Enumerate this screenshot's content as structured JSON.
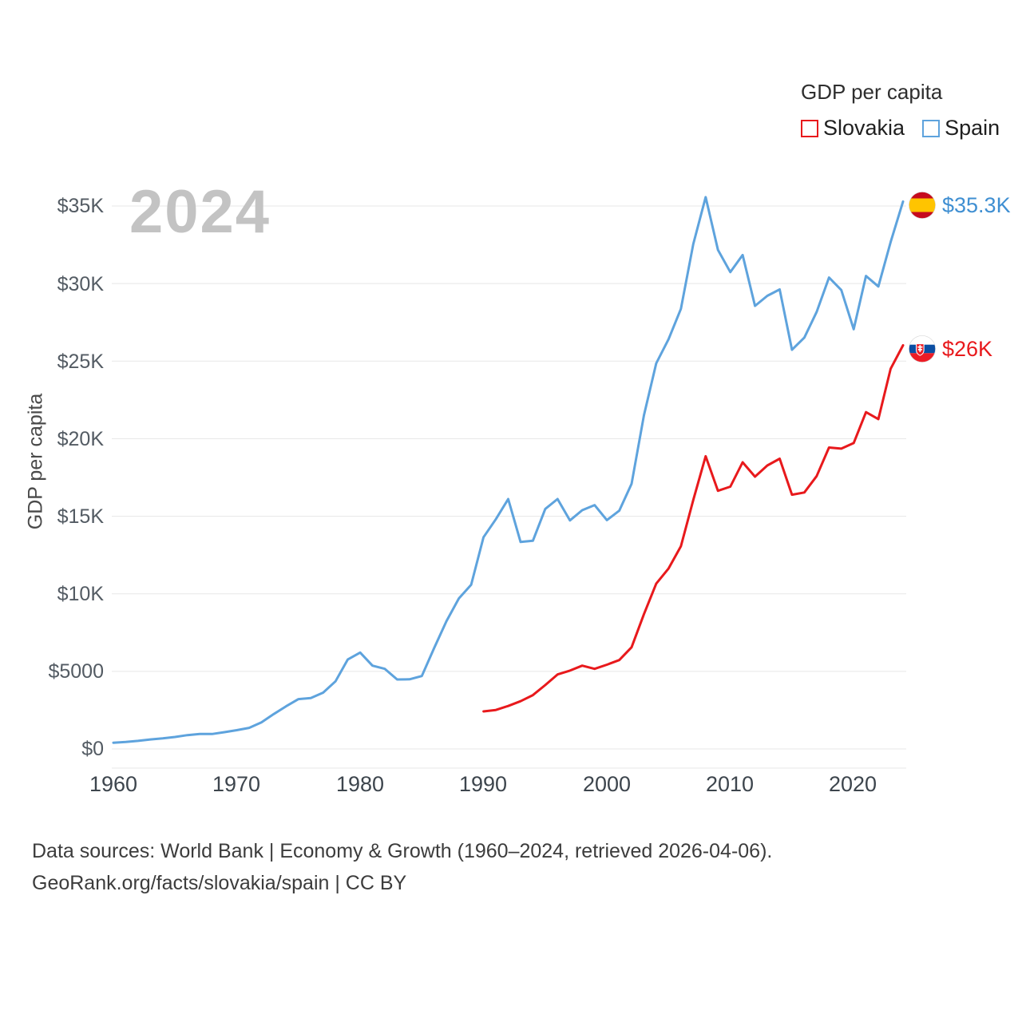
{
  "legend": {
    "title": "GDP per capita",
    "items": [
      {
        "label": "Slovakia",
        "color": "#e8191c"
      },
      {
        "label": "Spain",
        "color": "#5ea3dd"
      }
    ]
  },
  "watermark": "2024",
  "axis": {
    "y_title": "GDP per capita",
    "y_ticks": [
      "$35K",
      "$30K",
      "$25K",
      "$20K",
      "$15K",
      "$10K",
      "$5000",
      "$0"
    ],
    "x_ticks": [
      "1960",
      "1970",
      "1980",
      "1990",
      "2000",
      "2010",
      "2020"
    ]
  },
  "end_labels": {
    "spain": "$35.3K",
    "slovakia": "$26K"
  },
  "footer": {
    "line1": "Data sources: World Bank | Economy & Growth (1960–2024, retrieved 2026-04-06).",
    "line2": "GeoRank.org/facts/slovakia/spain | CC BY"
  },
  "chart_data": {
    "type": "line",
    "title": "GDP per capita",
    "ylabel": "GDP per capita",
    "unit": "thousand US$",
    "xlim": [
      1960,
      2024
    ],
    "ylim": [
      0,
      35
    ],
    "grid_values": [
      0,
      5,
      10,
      15,
      20,
      25,
      30,
      35
    ],
    "legend_position": "top-right",
    "series": [
      {
        "name": "Spain",
        "color": "#5ea3dd",
        "start_year": 1960,
        "step": 1,
        "values": [
          0.4,
          0.45,
          0.52,
          0.61,
          0.68,
          0.77,
          0.89,
          0.97,
          0.96,
          1.08,
          1.21,
          1.36,
          1.71,
          2.25,
          2.75,
          3.21,
          3.28,
          3.63,
          4.36,
          5.77,
          6.21,
          5.37,
          5.16,
          4.48,
          4.49,
          4.7,
          6.51,
          8.24,
          9.7,
          10.58,
          13.65,
          14.81,
          16.11,
          13.34,
          13.42,
          15.47,
          16.11,
          14.73,
          15.39,
          15.72,
          14.75,
          15.36,
          17.09,
          21.51,
          24.86,
          26.42,
          28.37,
          32.55,
          35.57,
          32.17,
          30.74,
          31.84,
          28.56,
          29.21,
          29.62,
          25.73,
          26.52,
          28.17,
          30.39,
          29.58,
          27.06,
          30.49,
          29.81,
          32.68,
          35.29
        ]
      },
      {
        "name": "Slovakia",
        "color": "#e8191c",
        "start_year": 1990,
        "step": 1,
        "values": [
          2.42,
          2.51,
          2.77,
          3.08,
          3.47,
          4.12,
          4.8,
          5.05,
          5.37,
          5.16,
          5.43,
          5.73,
          6.55,
          8.69,
          10.66,
          11.64,
          13.07,
          16.05,
          18.87,
          16.64,
          16.91,
          18.48,
          17.55,
          18.27,
          18.71,
          16.39,
          16.53,
          17.59,
          19.43,
          19.36,
          19.72,
          21.71,
          21.26,
          24.51,
          26.02
        ]
      }
    ]
  }
}
